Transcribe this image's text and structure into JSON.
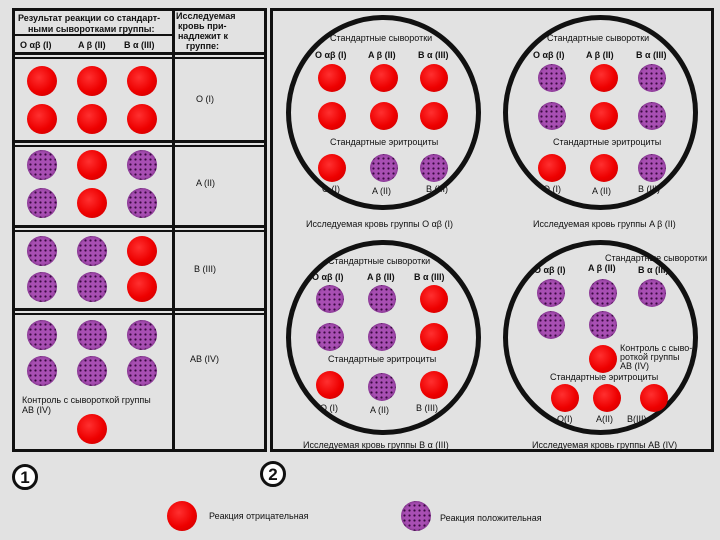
{
  "table": {
    "header_left": "Результат реакции со стандарт-",
    "header_left_2": "ными сыворотками группы:",
    "header_right_1": "Исследуемая",
    "header_right_2": "кровь при-",
    "header_right_3": "надлежит к",
    "header_right_4": "группе:",
    "col_o": "O αβ (I)",
    "col_a": "A β (II)",
    "col_b": "B α (III)",
    "row1_group": "O (I)",
    "row2_group": "A (II)",
    "row3_group": "B (III)",
    "row4_group": "AB (IV)",
    "control_1": "Контроль с сывороткой группы",
    "control_2": "AB (IV)"
  },
  "panel1_number": "1",
  "panel2_number": "2",
  "circles": {
    "std_serums": "Стандартные сыворотки",
    "std_erys": "Стандартные эритроциты",
    "s_o": "O αβ (I)",
    "s_a": "A β (II)",
    "s_b": "B α (III)",
    "e_o": "O (I)",
    "e_a": "A (II)",
    "e_b": "B (III)",
    "c1_caption": "Исследуемая кровь группы O αβ (I)",
    "c2_caption": "Исследуемая кровь группы A β (II)",
    "c3_caption": "Исследуемая кровь группы B α (III)",
    "c4_caption": "Исследуемая кровь группы AB (IV)",
    "c4_control_1": "Контроль с сыво-",
    "c4_control_2": "роткой группы",
    "c4_control_3": "AB (IV)",
    "c4_e_o": "O(I)",
    "c4_e_a": "A(II)",
    "c4_e_b": "B(III)"
  },
  "legend": {
    "negative": "Реакция отрицательная",
    "positive": "Реакция положительная"
  },
  "colors": {
    "negative_red": "#ee0000",
    "positive_purple": "#a84fb3"
  }
}
